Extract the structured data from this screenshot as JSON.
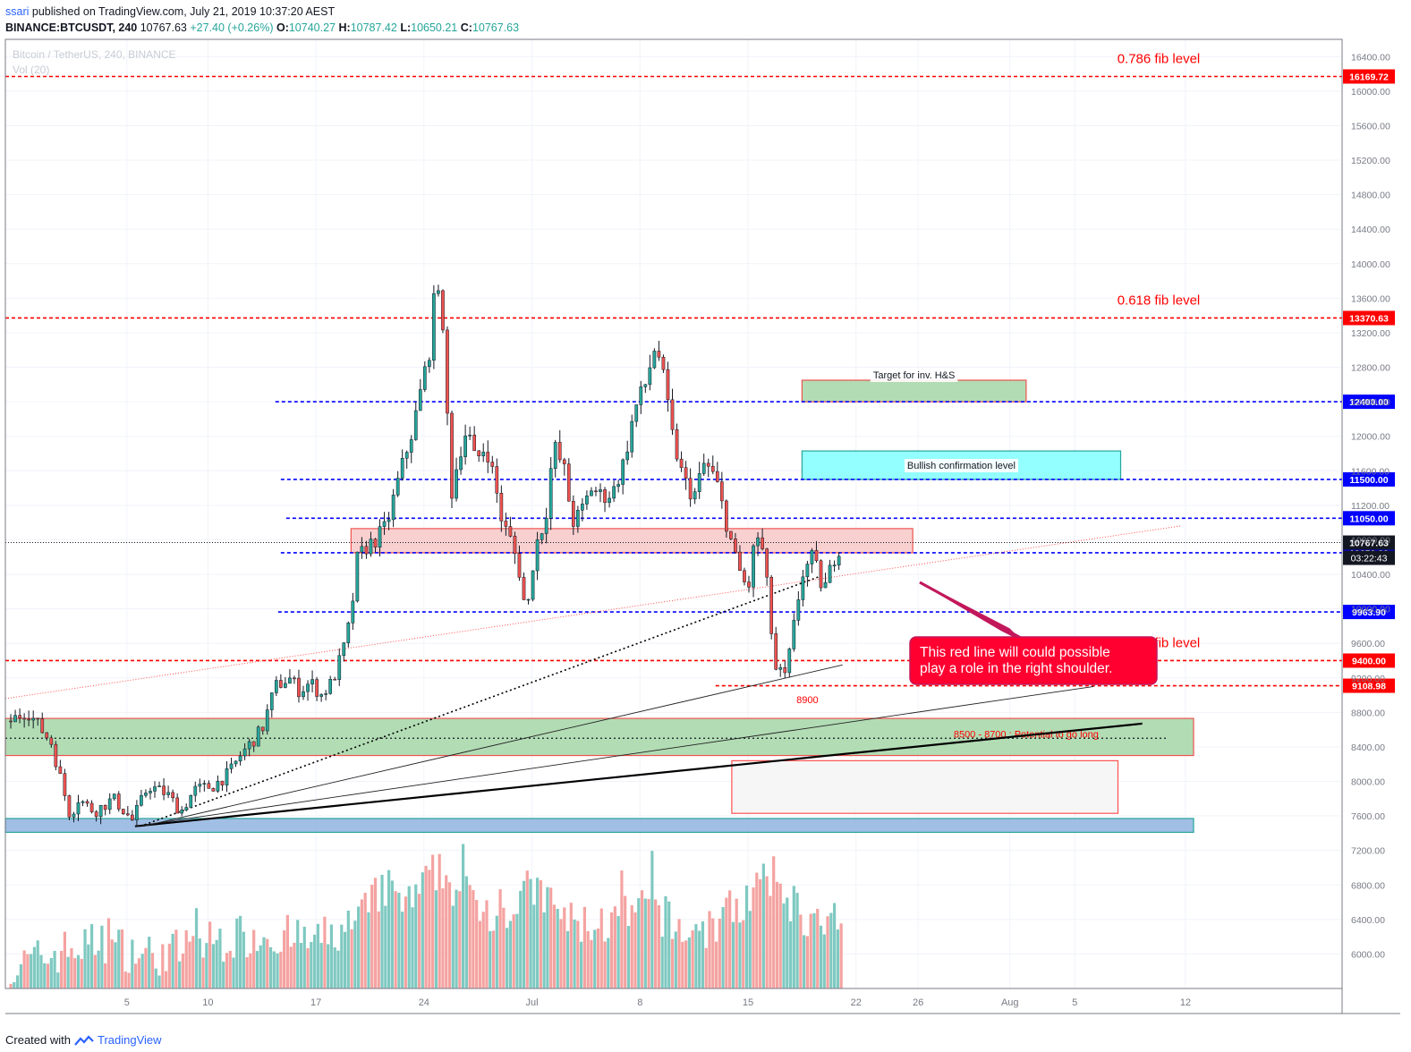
{
  "header": {
    "user": "ssari",
    "published": "published on TradingView.com, July 21, 2019 10:37:20 AEST",
    "symbol": "BINANCE:BTCUSDT, 240",
    "price": "10767.63",
    "change": "+27.40 (+0.26%)",
    "o_label": "O:",
    "o": "10740.27",
    "h_label": "H:",
    "h": "10787.42",
    "l_label": "L:",
    "l": "10650.21",
    "c_label": "C:",
    "c": "10767.63"
  },
  "watermark": {
    "title": "Bitcoin / TetherUS, 240, BINANCE",
    "vol": "Vol (20)"
  },
  "footer": {
    "created": "Created with",
    "brand": "TradingView"
  },
  "colors": {
    "up": "#26a69a",
    "down": "#ef5350",
    "level_red": "#ff0000",
    "level_blue": "#0000ff"
  },
  "chart_data": {
    "type": "candlestick",
    "symbol": "BTCUSDT",
    "interval": "240",
    "ylim": [
      5600,
      16600
    ],
    "xlim_days": [
      -1.5,
      48
    ],
    "y_ticks": [
      6000,
      6400,
      6800,
      7200,
      7600,
      8000,
      8400,
      8800,
      9200,
      9600,
      10000,
      10400,
      10800,
      11200,
      11600,
      12000,
      12400,
      12800,
      13200,
      13600,
      14000,
      14400,
      14800,
      15200,
      15600,
      16000,
      16400
    ],
    "x_ticks": [
      {
        "label": "5",
        "day": 3
      },
      {
        "label": "10",
        "day": 6
      },
      {
        "label": "17",
        "day": 10
      },
      {
        "label": "24",
        "day": 14
      },
      {
        "label": "Jul",
        "day": 18
      },
      {
        "label": "8",
        "day": 22
      },
      {
        "label": "15",
        "day": 26
      },
      {
        "label": "22",
        "day": 30
      },
      {
        "label": "26",
        "day": 32.3
      },
      {
        "label": "Aug",
        "day": 35.7
      },
      {
        "label": "5",
        "day": 38.1
      },
      {
        "label": "12",
        "day": 42.2
      }
    ],
    "candle_path": [
      [
        -1.3,
        8700
      ],
      [
        -0.7,
        8820
      ],
      [
        0.2,
        8450
      ],
      [
        0.9,
        7600
      ],
      [
        1.2,
        7800
      ],
      [
        1.8,
        7650
      ],
      [
        2.5,
        7800
      ],
      [
        3.2,
        7550
      ],
      [
        3.8,
        7950
      ],
      [
        4.5,
        7850
      ],
      [
        5.0,
        7650
      ],
      [
        5.5,
        7900
      ],
      [
        6.2,
        7950
      ],
      [
        6.8,
        8100
      ],
      [
        7.2,
        8300
      ],
      [
        8.0,
        8600
      ],
      [
        8.5,
        9100
      ],
      [
        9.0,
        9200
      ],
      [
        9.4,
        9050
      ],
      [
        9.8,
        9150
      ],
      [
        10.2,
        9000
      ],
      [
        10.6,
        9150
      ],
      [
        11.0,
        9500
      ],
      [
        11.3,
        9900
      ],
      [
        11.5,
        10550
      ],
      [
        11.8,
        10700
      ],
      [
        12.2,
        10800
      ],
      [
        12.6,
        10950
      ],
      [
        13.1,
        11550
      ],
      [
        13.6,
        12100
      ],
      [
        14.2,
        13000
      ],
      [
        14.5,
        13950
      ],
      [
        14.8,
        12700
      ],
      [
        15.0,
        11300
      ],
      [
        15.3,
        11800
      ],
      [
        15.6,
        12100
      ],
      [
        15.9,
        11700
      ],
      [
        16.3,
        11900
      ],
      [
        16.6,
        11500
      ],
      [
        16.9,
        11000
      ],
      [
        17.2,
        10800
      ],
      [
        17.5,
        10500
      ],
      [
        17.8,
        9900
      ],
      [
        18.1,
        10700
      ],
      [
        18.5,
        11050
      ],
      [
        18.8,
        11900
      ],
      [
        19.2,
        11600
      ],
      [
        19.5,
        11000
      ],
      [
        19.8,
        11100
      ],
      [
        20.2,
        11400
      ],
      [
        20.6,
        11300
      ],
      [
        21.0,
        11350
      ],
      [
        21.4,
        11700
      ],
      [
        21.8,
        12300
      ],
      [
        22.2,
        12600
      ],
      [
        22.6,
        13100
      ],
      [
        22.9,
        12600
      ],
      [
        23.2,
        12000
      ],
      [
        23.6,
        11500
      ],
      [
        24.0,
        11300
      ],
      [
        24.4,
        11700
      ],
      [
        24.8,
        11500
      ],
      [
        25.2,
        11000
      ],
      [
        25.6,
        10500
      ],
      [
        26.0,
        10200
      ],
      [
        26.3,
        10900
      ],
      [
        26.6,
        10600
      ],
      [
        27.0,
        9300
      ],
      [
        27.4,
        9200
      ],
      [
        27.7,
        9800
      ],
      [
        28.0,
        10400
      ],
      [
        28.4,
        10600
      ],
      [
        28.8,
        10200
      ],
      [
        29.2,
        10600
      ],
      [
        29.5,
        10800
      ]
    ],
    "volume_path": [
      [
        -1.3,
        6000
      ],
      [
        0.5,
        6200
      ],
      [
        2,
        6300
      ],
      [
        4,
        6150
      ],
      [
        6,
        6300
      ],
      [
        8,
        6400
      ],
      [
        10,
        6300
      ],
      [
        11.5,
        6500
      ],
      [
        12.5,
        6900
      ],
      [
        13.5,
        6700
      ],
      [
        14.5,
        7100
      ],
      [
        15.5,
        6800
      ],
      [
        17,
        6600
      ],
      [
        18,
        6900
      ],
      [
        19.5,
        6500
      ],
      [
        21,
        6500
      ],
      [
        22.5,
        6700
      ],
      [
        23.5,
        6400
      ],
      [
        25,
        6500
      ],
      [
        26,
        6800
      ],
      [
        27,
        7000
      ],
      [
        28,
        6600
      ],
      [
        29.5,
        6300
      ]
    ],
    "volume_ylim": [
      5800,
      7600
    ],
    "price_levels": [
      {
        "price": 16169.72,
        "color": "red",
        "label": "16169.72",
        "x0": -1.5,
        "annotation": "0.786 fib level"
      },
      {
        "price": 13370.63,
        "color": "red",
        "label": "13370.63",
        "x0": -1.5,
        "annotation": "0.618 fib level"
      },
      {
        "price": 12400.0,
        "color": "blue",
        "label": "12400.00",
        "x0": 8.5,
        "annotation": ""
      },
      {
        "price": 11500.0,
        "color": "blue",
        "label": "11500.00",
        "x0": 8.7,
        "annotation": ""
      },
      {
        "price": 11050.0,
        "color": "blue",
        "label": "11050.00",
        "x0": 8.9,
        "annotation": ""
      },
      {
        "price": 10650.0,
        "color": "blue",
        "label": "10650.00",
        "x0": 8.7,
        "annotation": ""
      },
      {
        "price": 9963.9,
        "color": "blue",
        "label": "9963.90",
        "x0": 8.6,
        "annotation": ""
      },
      {
        "price": 9400.0,
        "color": "red",
        "label": "9400.00",
        "x0": -1.5,
        "annotation": "0.382 fib level"
      },
      {
        "price": 9108.98,
        "color": "red",
        "label": "9108.98",
        "x0": 24.8,
        "annotation": ""
      }
    ],
    "current_price": {
      "price": 10767.63,
      "label": "10767.63",
      "countdown": "03:22:43"
    },
    "zones": [
      {
        "price_low": 12400,
        "price_high": 12650,
        "x0": 28.0,
        "x1": 36.3,
        "fill": "#a5d6a7",
        "stroke": "#ef5350",
        "label": "Target for inv. H&S"
      },
      {
        "price_low": 11500,
        "price_high": 11830,
        "x0": 28.0,
        "x1": 39.8,
        "fill": "#80ffff",
        "stroke": "#26a69a",
        "label": "Bullish confirmation level"
      },
      {
        "price_low": 10650,
        "price_high": 10930,
        "x0": 11.3,
        "x1": 32.1,
        "fill": "#f8c8c8",
        "stroke": "#ef5350",
        "label": ""
      },
      {
        "price_low": 8300,
        "price_high": 8730,
        "x0": -1.5,
        "x1": 42.5,
        "fill": "#a5d6a7",
        "stroke": "#ef5350",
        "label": "8500 - 8700 : Potential to go long"
      },
      {
        "price_low": 7630,
        "price_high": 8240,
        "x0": 25.4,
        "x1": 39.7,
        "fill": "#f5f5f5",
        "stroke": "#ff5252",
        "label": ""
      },
      {
        "price_low": 7410,
        "price_high": 7570,
        "x0": -1.5,
        "x1": 42.5,
        "fill": "#90b4e0",
        "stroke": "#26a69a",
        "label": ""
      }
    ],
    "annotations": [
      {
        "text": "8900",
        "day": 28.2,
        "price": 8950,
        "color": "#ff0000"
      },
      {
        "text": "This red line will could possible play a role in the right shoulder.",
        "type": "callout"
      }
    ],
    "callout": {
      "line1": "This red line will could possible",
      "line2": "play a role in the right shoulder."
    },
    "trendlines": [
      {
        "from": [
          3.3,
          7480
        ],
        "to": [
          40.6,
          8670
        ],
        "style": "solid-thick"
      },
      {
        "from": [
          3.3,
          7480
        ],
        "to": [
          38.8,
          9100
        ],
        "style": "solid"
      },
      {
        "from": [
          3.6,
          7480
        ],
        "to": [
          29.5,
          9350
        ],
        "style": "solid"
      },
      {
        "from": [
          3.5,
          7480
        ],
        "to": [
          28.7,
          10380
        ],
        "style": "dotted"
      },
      {
        "from": [
          -1.5,
          8960
        ],
        "to": [
          42.0,
          10960
        ],
        "style": "dotted-red"
      }
    ]
  }
}
